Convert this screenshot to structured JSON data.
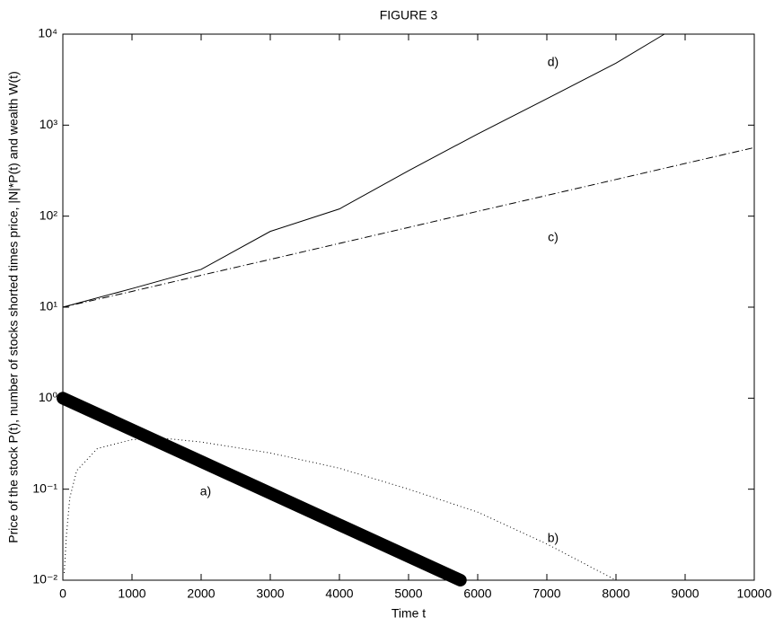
{
  "chart_data": {
    "type": "line",
    "title": "FIGURE 3",
    "xlabel": "Time t",
    "ylabel": "Price of the stock P(t), number of stocks shorted times price, |N|*P(t) and wealth W(t)",
    "log_y": true,
    "grid": false,
    "xlim": [
      0,
      10000
    ],
    "xticks": [
      0,
      1000,
      2000,
      3000,
      4000,
      5000,
      6000,
      7000,
      8000,
      9000,
      10000
    ],
    "ylim": [
      0.01,
      10000
    ],
    "yticks": [
      {
        "value": 0.01,
        "label": "10⁻²"
      },
      {
        "value": 0.1,
        "label": "10⁻¹"
      },
      {
        "value": 1,
        "label": "10⁰"
      },
      {
        "value": 10,
        "label": "10¹"
      },
      {
        "value": 100,
        "label": "10²"
      },
      {
        "value": 1000,
        "label": "10³"
      },
      {
        "value": 10000,
        "label": "10⁴"
      }
    ],
    "annotations": [
      "a)",
      "b)",
      "c)",
      "d)"
    ],
    "series": [
      {
        "color": "#000000",
        "linestyle": "solid",
        "linewidth": 14,
        "x": [
          0,
          5750
        ],
        "values": [
          1,
          0.01
        ]
      },
      {
        "color": "#000000",
        "linestyle": "dotted",
        "linewidth": 1,
        "x": [
          20,
          50,
          100,
          200,
          500,
          1000,
          1500,
          2000,
          3000,
          4000,
          5000,
          6000,
          7000,
          8000
        ],
        "values": [
          0.012,
          0.03,
          0.08,
          0.16,
          0.28,
          0.35,
          0.36,
          0.33,
          0.25,
          0.17,
          0.1,
          0.056,
          0.025,
          0.01
        ]
      },
      {
        "color": "#000000",
        "linestyle": "dashdot",
        "linewidth": 1,
        "x": [
          0,
          1000,
          2000,
          3000,
          4000,
          5000,
          6000,
          7000,
          8000,
          9000,
          10000
        ],
        "values": [
          10,
          14.9,
          22.4,
          33.5,
          50.2,
          75.2,
          113,
          169,
          253,
          379,
          567
        ]
      },
      {
        "color": "#000000",
        "linestyle": "solid",
        "linewidth": 1,
        "x": [
          0,
          1000,
          2000,
          3000,
          4000,
          5000,
          6000,
          7000,
          8000,
          8700
        ],
        "values": [
          10,
          16,
          26,
          68,
          120,
          316,
          800,
          1950,
          4800,
          10000
        ]
      }
    ]
  }
}
